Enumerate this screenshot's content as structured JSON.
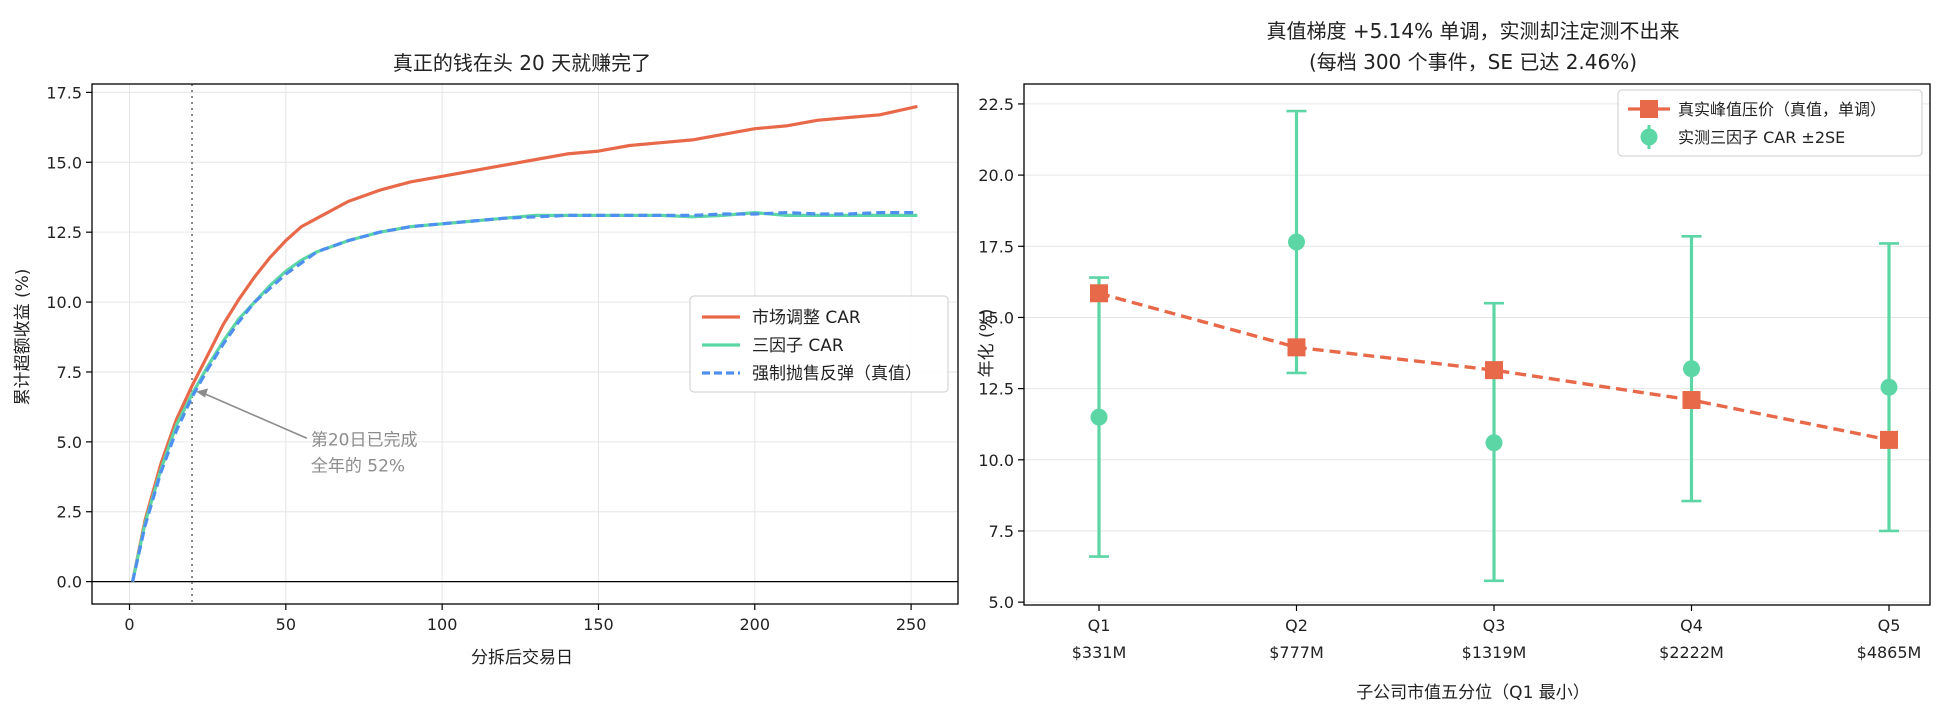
{
  "chart_data": [
    {
      "type": "line",
      "title": "真正的钱在头 20 天就赚完了",
      "xlabel": "分拆后交易日",
      "ylabel": "累计超额收益 (%)",
      "xlim": [
        -12,
        265
      ],
      "ylim": [
        -0.8,
        17.8
      ],
      "xticks": [
        0,
        50,
        100,
        150,
        200,
        250
      ],
      "yticks": [
        0.0,
        2.5,
        5.0,
        7.5,
        10.0,
        12.5,
        15.0,
        17.5
      ],
      "grid": true,
      "legend_position": "center-right",
      "reference_vline_x": 20,
      "reference_hline_y": 0,
      "series": [
        {
          "name": "市场调整 CAR",
          "color": "#e8694a",
          "style": "solid",
          "x": [
            1,
            5,
            10,
            15,
            20,
            25,
            30,
            35,
            40,
            45,
            50,
            55,
            60,
            70,
            80,
            90,
            100,
            110,
            120,
            130,
            140,
            150,
            160,
            170,
            180,
            190,
            200,
            210,
            220,
            230,
            240,
            252
          ],
          "y": [
            0.0,
            2.2,
            4.2,
            5.8,
            7.0,
            8.1,
            9.2,
            10.1,
            10.9,
            11.6,
            12.2,
            12.7,
            13.0,
            13.6,
            14.0,
            14.3,
            14.5,
            14.7,
            14.9,
            15.1,
            15.3,
            15.4,
            15.6,
            15.7,
            15.8,
            16.0,
            16.2,
            16.3,
            16.5,
            16.6,
            16.7,
            17.0
          ]
        },
        {
          "name": "三因子 CAR",
          "color": "#5cd6a4",
          "style": "solid",
          "x": [
            1,
            5,
            10,
            15,
            20,
            25,
            30,
            35,
            40,
            45,
            50,
            55,
            60,
            70,
            80,
            90,
            100,
            110,
            120,
            130,
            140,
            150,
            160,
            170,
            180,
            190,
            200,
            210,
            220,
            230,
            240,
            252
          ],
          "y": [
            0.0,
            2.1,
            4.0,
            5.6,
            6.7,
            7.7,
            8.6,
            9.4,
            10.0,
            10.6,
            11.1,
            11.5,
            11.8,
            12.2,
            12.5,
            12.7,
            12.8,
            12.9,
            13.0,
            13.1,
            13.1,
            13.1,
            13.1,
            13.1,
            13.05,
            13.1,
            13.2,
            13.1,
            13.1,
            13.1,
            13.1,
            13.1
          ]
        },
        {
          "name": "强制抛售反弹（真值）",
          "color": "#4f8ff0",
          "style": "dashed",
          "x": [
            1,
            5,
            10,
            15,
            20,
            25,
            30,
            35,
            40,
            45,
            50,
            55,
            60,
            70,
            80,
            90,
            100,
            110,
            120,
            130,
            140,
            150,
            160,
            170,
            180,
            190,
            200,
            210,
            220,
            230,
            240,
            252
          ],
          "y": [
            0.0,
            2.0,
            3.9,
            5.4,
            6.6,
            7.6,
            8.5,
            9.3,
            10.0,
            10.5,
            11.0,
            11.4,
            11.8,
            12.2,
            12.5,
            12.7,
            12.8,
            12.9,
            13.0,
            13.05,
            13.1,
            13.1,
            13.1,
            13.1,
            13.1,
            13.15,
            13.15,
            13.2,
            13.15,
            13.15,
            13.2,
            13.2
          ]
        }
      ],
      "annotations": [
        {
          "text_lines": [
            "第20日已完成",
            "全年的 52%"
          ],
          "arrow_to": [
            20,
            6.8
          ],
          "text_at": [
            58,
            5.2
          ]
        }
      ]
    },
    {
      "type": "line",
      "title": "真值梯度 +5.14% 单调，实测却注定测不出来",
      "subtitle": "(每档 300 个事件，SE 已达 2.46%)",
      "xlabel": "子公司市值五分位（Q1 最小）",
      "ylabel": "年化 (%)",
      "categories": [
        "Q1",
        "Q2",
        "Q3",
        "Q4",
        "Q5"
      ],
      "category_sublabels": [
        "$331M",
        "$777M",
        "$1319M",
        "$2222M",
        "$4865M"
      ],
      "ylim": [
        4.9,
        23.2
      ],
      "yticks": [
        5.0,
        7.5,
        10.0,
        12.5,
        15.0,
        17.5,
        20.0,
        22.5
      ],
      "grid": true,
      "legend_position": "top-right",
      "series": [
        {
          "name": "真实峰值压价（真值，单调）",
          "color": "#e8694a",
          "marker": "square",
          "style": "dashed",
          "values": [
            15.85,
            13.95,
            13.15,
            12.1,
            10.7
          ]
        },
        {
          "name": "实测三因子 CAR ±2SE",
          "color": "#5cd6a4",
          "marker": "circle",
          "style": "errorbar",
          "values": [
            11.5,
            17.65,
            10.6,
            13.2,
            12.55
          ],
          "err_low": [
            6.6,
            13.05,
            5.75,
            8.55,
            7.5
          ],
          "err_high": [
            16.4,
            22.25,
            15.5,
            17.85,
            17.6
          ]
        }
      ]
    }
  ]
}
